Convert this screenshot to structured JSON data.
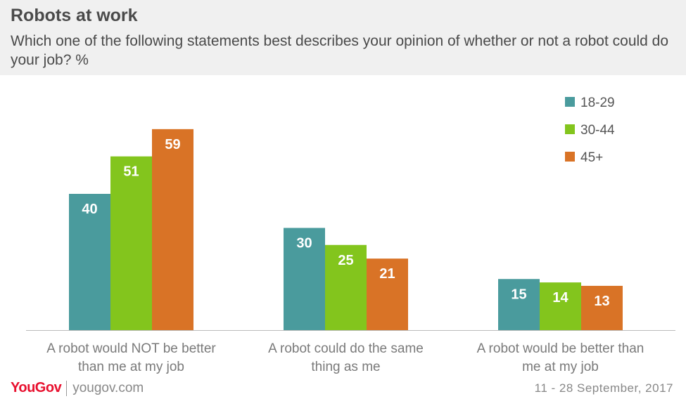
{
  "header": {
    "title": "Robots at work",
    "subtitle": "Which one of the following statements best describes your opinion of whether or not a robot could do your job? %"
  },
  "footer": {
    "logo": "YouGov",
    "url": "yougov.com",
    "date": "11 - 28 September, 2017"
  },
  "colors": {
    "series_18_29": "#4a9b9d",
    "series_30_44": "#83c51d",
    "series_45_plus": "#d97326"
  },
  "chart_data": {
    "type": "bar",
    "categories": [
      [
        "A robot would NOT be better",
        "than me at my job"
      ],
      [
        "A robot could do the same",
        "thing as me"
      ],
      [
        "A robot would be better than",
        "me at my job"
      ]
    ],
    "series": [
      {
        "name": "18-29",
        "values": [
          40,
          30,
          15
        ],
        "color": "#4a9b9d"
      },
      {
        "name": "30-44",
        "values": [
          51,
          25,
          14
        ],
        "color": "#83c51d"
      },
      {
        "name": "45+",
        "values": [
          59,
          21,
          13
        ],
        "color": "#d97326"
      }
    ],
    "ylim": [
      0,
      80
    ],
    "grid": false,
    "legend": "top-right",
    "data_labels": true
  }
}
